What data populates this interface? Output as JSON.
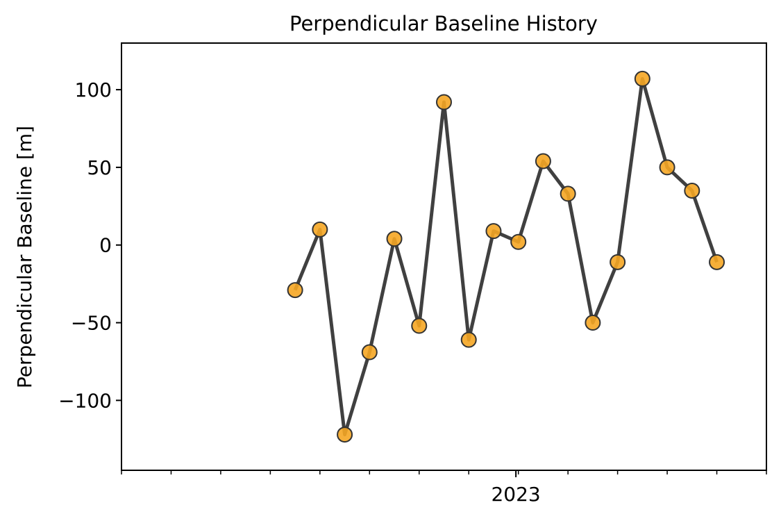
{
  "chart_data": {
    "type": "line",
    "title": "Perpendicular Baseline History",
    "xlabel": "",
    "ylabel": "Perpendicular Baseline [m]",
    "ylim": [
      -145,
      130
    ],
    "y_ticks": [
      -100,
      -50,
      0,
      50,
      100
    ],
    "y_tick_labels": [
      "−100",
      "−50",
      "0",
      "50",
      "100"
    ],
    "x_tick_labels": [
      {
        "index": 8,
        "label": "2023"
      }
    ],
    "x_minor_tick_count": 14,
    "grid": false,
    "series": [
      {
        "values": [
          -29,
          10,
          -122,
          -69,
          4,
          -52,
          92,
          -61,
          9,
          2,
          54,
          33,
          -50,
          -11,
          107,
          50,
          35,
          -11
        ],
        "line_color": "#404040",
        "marker_color": "#f5a623",
        "marker_edge": "#333333"
      }
    ]
  }
}
